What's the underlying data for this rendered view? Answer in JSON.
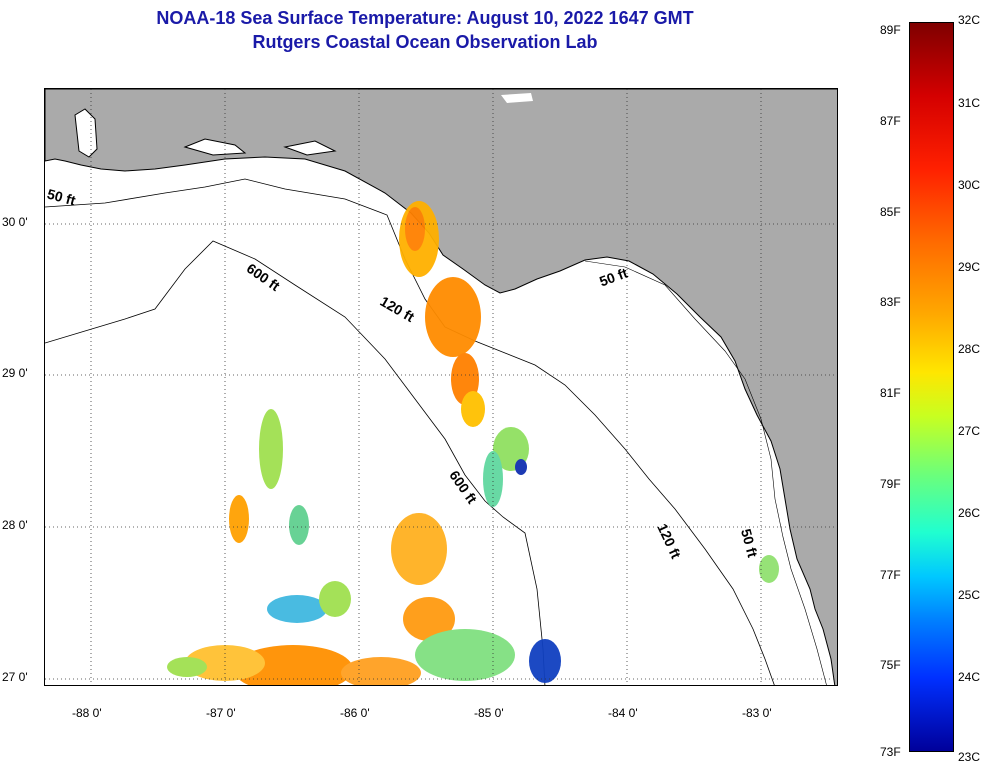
{
  "header": {
    "title": "NOAA-18 Sea Surface Temperature:  August 10, 2022 1647 GMT",
    "subtitle": "Rutgers Coastal Ocean Observation Lab"
  },
  "map": {
    "lat_labels": [
      "30 0'",
      "29 0'",
      "28 0'",
      "27 0'"
    ],
    "lon_labels": [
      "-88 0'",
      "-87 0'",
      "-86 0'",
      "-85 0'",
      "-84 0'",
      "-83 0'"
    ],
    "contour_labels": {
      "c50_west": "50 ft",
      "c600_north": "600 ft",
      "c120_north": "120 ft",
      "c50_east": "50 ft",
      "c600_south": "600 ft",
      "c120_south": "120 ft",
      "c50_south": "50 ft"
    },
    "colors": {
      "land": "#aaaaaa",
      "ocean": "#ffffff",
      "title": "#1a1aa8"
    }
  },
  "colorbar": {
    "fahrenheit": [
      "89F",
      "87F",
      "85F",
      "83F",
      "81F",
      "79F",
      "77F",
      "75F",
      "73F"
    ],
    "celsius": [
      "32C",
      "31C",
      "30C",
      "29C",
      "28C",
      "27C",
      "26C",
      "25C",
      "24C",
      "23C"
    ]
  }
}
